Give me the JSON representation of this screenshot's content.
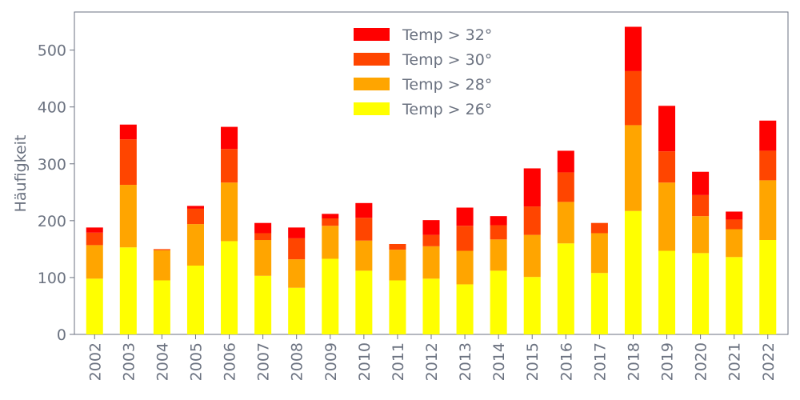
{
  "chart_data": {
    "type": "bar",
    "stacked": true,
    "categories": [
      "2002",
      "2003",
      "2004",
      "2005",
      "2006",
      "2007",
      "2008",
      "2009",
      "2010",
      "2011",
      "2012",
      "2013",
      "2014",
      "2015",
      "2016",
      "2017",
      "2018",
      "2019",
      "2020",
      "2021",
      "2022"
    ],
    "ylabel": "Häufigkeit",
    "xlabel": "",
    "ylim": [
      0,
      567
    ],
    "yticks": [
      0,
      100,
      200,
      300,
      400,
      500
    ],
    "grid": false,
    "legend_position": "top-center",
    "series": [
      {
        "name": "Temp > 26°",
        "color": "#ffff00",
        "values": [
          98,
          153,
          95,
          121,
          164,
          103,
          82,
          133,
          112,
          95,
          98,
          88,
          112,
          101,
          160,
          108,
          217,
          147,
          143,
          136,
          166
        ]
      },
      {
        "name": "Temp > 28°",
        "color": "#ffa500",
        "values": [
          59,
          110,
          53,
          73,
          103,
          63,
          50,
          58,
          53,
          54,
          57,
          59,
          55,
          74,
          73,
          70,
          151,
          120,
          65,
          49,
          105
        ]
      },
      {
        "name": "Temp > 30°",
        "color": "#ff4500",
        "values": [
          22,
          80,
          2,
          27,
          59,
          12,
          37,
          13,
          40,
          10,
          20,
          44,
          25,
          50,
          52,
          18,
          95,
          55,
          37,
          17,
          52
        ]
      },
      {
        "name": "Temp > 32°",
        "color": "#ff0000",
        "values": [
          9,
          26,
          0,
          5,
          39,
          18,
          19,
          8,
          26,
          0,
          26,
          32,
          16,
          67,
          38,
          0,
          78,
          80,
          41,
          14,
          53
        ]
      }
    ],
    "legend_order": [
      "Temp > 32°",
      "Temp > 30°",
      "Temp > 28°",
      "Temp > 26°"
    ]
  }
}
